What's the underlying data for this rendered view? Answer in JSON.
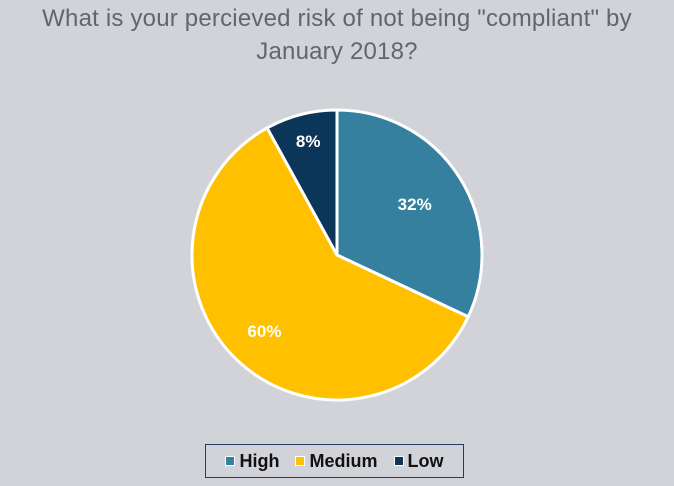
{
  "chart_data": {
    "type": "pie",
    "title_lines": [
      "What is your percieved risk of not being \"compliant\" by",
      "January 2018?"
    ],
    "categories": [
      "High",
      "Medium",
      "Low"
    ],
    "values": [
      32,
      60,
      8
    ],
    "labels": [
      "32%",
      "60%",
      "8%"
    ],
    "colors": [
      "#35809f",
      "#ffc000",
      "#0b3559"
    ],
    "start_angle_degrees": 0,
    "direction": "clockwise",
    "legend_position": "bottom"
  }
}
